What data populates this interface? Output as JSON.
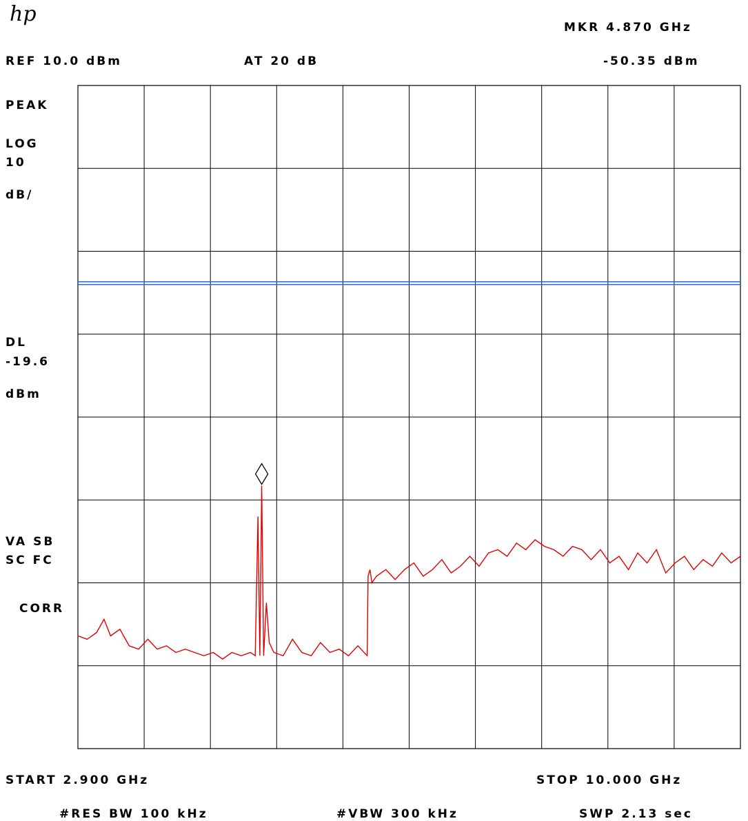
{
  "logo": "hp",
  "header": {
    "marker_label": "MKR 4.870 GHz",
    "ref_label": "REF 10.0 dBm",
    "atten_label": "AT 20 dB",
    "marker_value": "-50.35 dBm"
  },
  "side": {
    "detector": "PEAK",
    "scale_line1": "LOG",
    "scale_line2": "10",
    "scale_line3": "dB/",
    "dl_line1": "DL",
    "dl_line2": "-19.6",
    "dl_line3": "dBm",
    "mode_line1": "VA SB",
    "mode_line2": "SC FC",
    "corr": "CORR"
  },
  "footer": {
    "start": "START 2.900 GHz",
    "stop": "STOP 10.000 GHz",
    "rbw": "#RES BW 100 kHz",
    "vbw": "#VBW 300 kHz",
    "sweep": "SWP 2.13   sec"
  },
  "colors": {
    "trace": "#e00000",
    "display_line": "#1f6fd0",
    "grid": "#000000"
  },
  "chart_data": {
    "type": "line",
    "x_unit": "GHz",
    "y_unit": "dBm",
    "xlim": [
      2.9,
      10.0
    ],
    "ylim": [
      -90,
      10
    ],
    "grid": true,
    "divisions": {
      "x": 10,
      "y": 8,
      "y_per_div_db": 10
    },
    "display_line_dbm": -19.6,
    "marker": {
      "x": 4.87,
      "y": -50.35
    },
    "series": [
      {
        "x": [
          2.9,
          3.0,
          3.1,
          3.18,
          3.25,
          3.35,
          3.45,
          3.55,
          3.65,
          3.75,
          3.85,
          3.95,
          4.05,
          4.15,
          4.25,
          4.35,
          4.45,
          4.55,
          4.65,
          4.75,
          4.8,
          4.83,
          4.85,
          4.87,
          4.89,
          4.92,
          4.95,
          5.0,
          5.1,
          5.2,
          5.3,
          5.4,
          5.5,
          5.6,
          5.7,
          5.8,
          5.9,
          6.0,
          6.01,
          6.03,
          6.05,
          6.1,
          6.2,
          6.3,
          6.4,
          6.5,
          6.6,
          6.7,
          6.8,
          6.9,
          7.0,
          7.1,
          7.2,
          7.3,
          7.4,
          7.5,
          7.6,
          7.7,
          7.8,
          7.9,
          8.0,
          8.1,
          8.2,
          8.3,
          8.4,
          8.5,
          8.6,
          8.7,
          8.8,
          8.9,
          9.0,
          9.1,
          9.2,
          9.3,
          9.4,
          9.5,
          9.6,
          9.7,
          9.8,
          9.9,
          10.0
        ],
        "y": [
          -73,
          -73.5,
          -72.5,
          -70.5,
          -73,
          -72,
          -74.5,
          -75,
          -73.5,
          -75,
          -74.5,
          -75.5,
          -75,
          -75.5,
          -76,
          -75.5,
          -76.5,
          -75.5,
          -76,
          -75.5,
          -76,
          -55,
          -76,
          -50.35,
          -76,
          -68,
          -74,
          -75.5,
          -76,
          -73.5,
          -75.5,
          -76,
          -74,
          -75.5,
          -75,
          -76,
          -74.5,
          -76,
          -64,
          -63,
          -65,
          -64,
          -63,
          -64.5,
          -63,
          -62,
          -64,
          -63,
          -61.5,
          -63.5,
          -62.5,
          -61,
          -62.5,
          -60.5,
          -60,
          -61,
          -59,
          -60,
          -58.5,
          -59.5,
          -60,
          -61,
          -59.5,
          -60,
          -61.5,
          -60,
          -62,
          -61,
          -63,
          -60.5,
          -62,
          -60,
          -63.5,
          -62,
          -61,
          -63,
          -61.5,
          -62.5,
          -60.5,
          -62,
          -61
        ]
      }
    ]
  }
}
